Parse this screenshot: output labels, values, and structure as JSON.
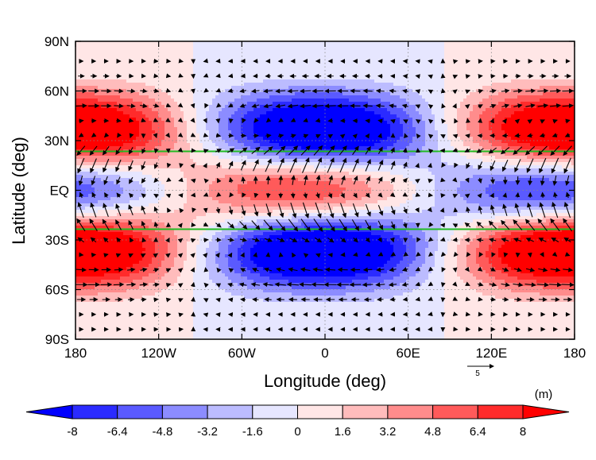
{
  "chart_data": {
    "type": "heatmap",
    "xlabel": "Longitude (deg)",
    "ylabel": "Latitude (deg)",
    "xlim": [
      -180,
      180
    ],
    "ylim": [
      -90,
      90
    ],
    "x_ticks": [
      {
        "value": -180,
        "label": "180"
      },
      {
        "value": -120,
        "label": "120W"
      },
      {
        "value": -60,
        "label": "60W"
      },
      {
        "value": 0,
        "label": "0"
      },
      {
        "value": 60,
        "label": "60E"
      },
      {
        "value": 120,
        "label": "120E"
      },
      {
        "value": 180,
        "label": "180"
      }
    ],
    "y_ticks": [
      {
        "value": 90,
        "label": "90N"
      },
      {
        "value": 60,
        "label": "60N"
      },
      {
        "value": 30,
        "label": "30N"
      },
      {
        "value": 0,
        "label": "EQ"
      },
      {
        "value": -30,
        "label": "30S"
      },
      {
        "value": -60,
        "label": "60S"
      },
      {
        "value": -90,
        "label": "90S"
      }
    ],
    "grid": "dotted",
    "colorbar": {
      "units": "(m)",
      "levels": [
        -8,
        -6.4,
        -4.8,
        -3.2,
        -1.6,
        0,
        1.6,
        3.2,
        4.8,
        6.4,
        8
      ],
      "labels": [
        "-8",
        "-6.4",
        "-4.8",
        "-3.2",
        "-1.6",
        "0",
        "1.6",
        "3.2",
        "4.8",
        "6.4",
        "8"
      ],
      "colors": [
        "#0000ff",
        "#2b2bff",
        "#5a5aff",
        "#8c8cff",
        "#bcbcff",
        "#e6e6ff",
        "#ffe6e6",
        "#ffbcbc",
        "#ff8c8c",
        "#ff5a5a",
        "#ff2b2b",
        "#ff0000"
      ]
    },
    "reference_lines": [
      {
        "latitude": 23.5,
        "color": "#22bb22"
      },
      {
        "latitude": -23.5,
        "color": "#22bb22"
      }
    ],
    "reference_vector": {
      "label": "5",
      "magnitude": 5
    },
    "height_centers": [
      {
        "lon": -170,
        "lat": 43,
        "value": 7.5
      },
      {
        "lon": -170,
        "lat": -43,
        "value": 7.5
      },
      {
        "lon": 165,
        "lat": 43,
        "value": 7.5
      },
      {
        "lon": 165,
        "lat": -43,
        "value": 7.5
      },
      {
        "lon": -170,
        "lat": 0,
        "value": -6.2
      },
      {
        "lon": 160,
        "lat": 0,
        "value": -6.2
      },
      {
        "lon": -5,
        "lat": 43,
        "value": -7.2
      },
      {
        "lon": -5,
        "lat": -43,
        "value": -7.6
      },
      {
        "lon": -25,
        "lat": 0,
        "value": 6.2
      }
    ]
  }
}
